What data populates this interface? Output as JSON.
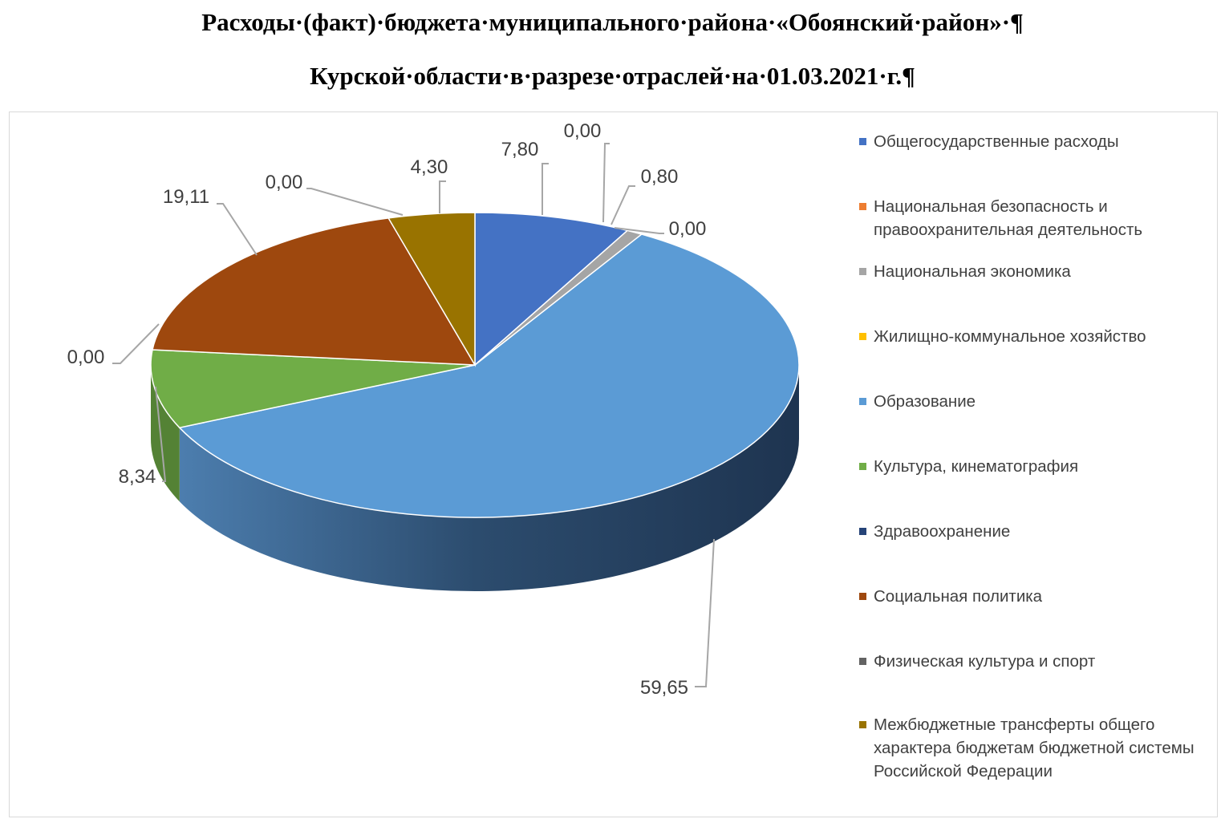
{
  "title": {
    "line1": "Расходы·(факт)·бюджета·муниципального·района·«Обоянский·район»·¶",
    "line2": "Курской·области·в·разрезе·отраслей·на·01.03.2021·г.¶"
  },
  "chart_data": {
    "type": "pie",
    "title": "Расходы·(факт)·бюджета·муниципального·района·«Обоянский·район»·¶ Курской·области·в·разрезе·отраслей·на·01.03.2021·г.¶",
    "three_d": true,
    "legend_position": "right",
    "slices": [
      {
        "name": "Общегосударственные расходы",
        "value": 7.8,
        "label": "7,80",
        "color": "#4472c4"
      },
      {
        "name": "Национальная безопасность и правоохранительная деятельность",
        "value": 0.0,
        "label": "0,00",
        "color": "#ed7d31"
      },
      {
        "name": "Национальная экономика",
        "value": 0.8,
        "label": "0,80",
        "color": "#a5a5a5"
      },
      {
        "name": "Жилищно-коммунальное хозяйство",
        "value": 0.0,
        "label": "0,00",
        "color": "#ffc000"
      },
      {
        "name": "Образование",
        "value": 59.65,
        "label": "59,65",
        "color": "#5b9bd5"
      },
      {
        "name": "Культура, кинематография",
        "value": 8.34,
        "label": "8,34",
        "color": "#70ad47"
      },
      {
        "name": "Здравоохранение",
        "value": 0.0,
        "label": "0,00",
        "color": "#264478"
      },
      {
        "name": "Социальная политика",
        "value": 19.11,
        "label": "19,11",
        "color": "#9e480e"
      },
      {
        "name": "Физическая культура и спорт",
        "value": 0.0,
        "label": "0,00",
        "color": "#636363"
      },
      {
        "name": "Межбюджетные трансферты общего характера бюджетам бюджетной системы Российской Федерации",
        "value": 4.3,
        "label": "4,30",
        "color": "#997300"
      }
    ]
  }
}
